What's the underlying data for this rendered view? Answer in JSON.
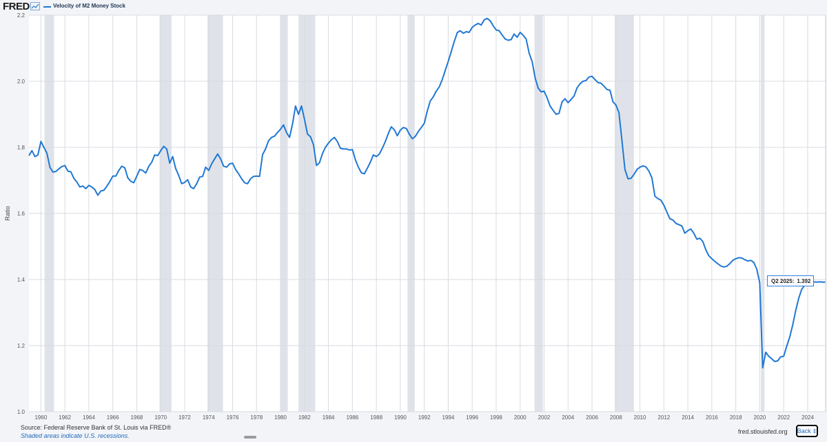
{
  "header": {
    "logo_text": "FRED",
    "logo_icon": "line-chart-icon",
    "series_title": "Velocity of M2 Money Stock"
  },
  "colors": {
    "series": "#1f77d4",
    "recession": "#dfe3e9",
    "grid": "#d7dbe1",
    "plot_bg": "#ffffff"
  },
  "chart_data": {
    "type": "line",
    "title": "Velocity of M2 Money Stock",
    "ylabel": "Ratio",
    "xlabel": "",
    "xlim": [
      1959.0,
      2025.5
    ],
    "ylim": [
      1.0,
      2.2
    ],
    "grid": true,
    "x_ticks": [
      "1960",
      "1962",
      "1964",
      "1966",
      "1968",
      "1970",
      "1972",
      "1974",
      "1976",
      "1978",
      "1980",
      "1982",
      "1984",
      "1986",
      "1988",
      "1990",
      "1992",
      "1994",
      "1996",
      "1998",
      "2000",
      "2002",
      "2004",
      "2006",
      "2008",
      "2010",
      "2012",
      "2014",
      "2016",
      "2018",
      "2020",
      "2022",
      "2024"
    ],
    "y_ticks": [
      "1.0",
      "1.2",
      "1.4",
      "1.6",
      "1.8",
      "2.0",
      "2.2"
    ],
    "recessions": [
      [
        1960.3,
        1961.1
      ],
      [
        1969.9,
        1970.9
      ],
      [
        1973.9,
        1975.2
      ],
      [
        1980.0,
        1980.6
      ],
      [
        1981.5,
        1982.9
      ],
      [
        1990.6,
        1991.2
      ],
      [
        2001.2,
        2001.9
      ],
      [
        2007.9,
        2009.5
      ],
      [
        2020.1,
        2020.4
      ]
    ],
    "series": [
      {
        "name": "Velocity of M2 Money Stock",
        "points": [
          [
            1959.0,
            1.775
          ],
          [
            1959.25,
            1.79
          ],
          [
            1959.5,
            1.772
          ],
          [
            1959.75,
            1.777
          ],
          [
            1960.0,
            1.818
          ],
          [
            1960.25,
            1.8
          ],
          [
            1960.5,
            1.782
          ],
          [
            1960.75,
            1.74
          ],
          [
            1961.0,
            1.725
          ],
          [
            1961.25,
            1.727
          ],
          [
            1961.5,
            1.735
          ],
          [
            1961.75,
            1.742
          ],
          [
            1962.0,
            1.745
          ],
          [
            1962.25,
            1.728
          ],
          [
            1962.5,
            1.726
          ],
          [
            1962.75,
            1.706
          ],
          [
            1963.0,
            1.695
          ],
          [
            1963.25,
            1.68
          ],
          [
            1963.5,
            1.683
          ],
          [
            1963.75,
            1.675
          ],
          [
            1964.0,
            1.685
          ],
          [
            1964.25,
            1.68
          ],
          [
            1964.5,
            1.672
          ],
          [
            1964.75,
            1.655
          ],
          [
            1965.0,
            1.668
          ],
          [
            1965.25,
            1.67
          ],
          [
            1965.5,
            1.682
          ],
          [
            1965.75,
            1.696
          ],
          [
            1966.0,
            1.713
          ],
          [
            1966.25,
            1.713
          ],
          [
            1966.5,
            1.73
          ],
          [
            1966.75,
            1.743
          ],
          [
            1967.0,
            1.738
          ],
          [
            1967.25,
            1.708
          ],
          [
            1967.5,
            1.697
          ],
          [
            1967.75,
            1.693
          ],
          [
            1968.0,
            1.713
          ],
          [
            1968.25,
            1.733
          ],
          [
            1968.5,
            1.73
          ],
          [
            1968.75,
            1.722
          ],
          [
            1969.0,
            1.742
          ],
          [
            1969.25,
            1.755
          ],
          [
            1969.5,
            1.777
          ],
          [
            1969.75,
            1.775
          ],
          [
            1970.0,
            1.79
          ],
          [
            1970.25,
            1.803
          ],
          [
            1970.5,
            1.795
          ],
          [
            1970.75,
            1.752
          ],
          [
            1971.0,
            1.772
          ],
          [
            1971.25,
            1.736
          ],
          [
            1971.5,
            1.715
          ],
          [
            1971.75,
            1.69
          ],
          [
            1972.0,
            1.694
          ],
          [
            1972.25,
            1.702
          ],
          [
            1972.5,
            1.68
          ],
          [
            1972.75,
            1.675
          ],
          [
            1973.0,
            1.69
          ],
          [
            1973.25,
            1.71
          ],
          [
            1973.5,
            1.712
          ],
          [
            1973.75,
            1.74
          ],
          [
            1974.0,
            1.73
          ],
          [
            1974.25,
            1.75
          ],
          [
            1974.5,
            1.765
          ],
          [
            1974.75,
            1.78
          ],
          [
            1975.0,
            1.765
          ],
          [
            1975.25,
            1.743
          ],
          [
            1975.5,
            1.74
          ],
          [
            1975.75,
            1.75
          ],
          [
            1976.0,
            1.752
          ],
          [
            1976.25,
            1.733
          ],
          [
            1976.5,
            1.72
          ],
          [
            1976.75,
            1.705
          ],
          [
            1977.0,
            1.693
          ],
          [
            1977.25,
            1.69
          ],
          [
            1977.5,
            1.705
          ],
          [
            1977.75,
            1.712
          ],
          [
            1978.0,
            1.713
          ],
          [
            1978.25,
            1.712
          ],
          [
            1978.5,
            1.778
          ],
          [
            1978.75,
            1.795
          ],
          [
            1979.0,
            1.82
          ],
          [
            1979.25,
            1.83
          ],
          [
            1979.5,
            1.834
          ],
          [
            1979.75,
            1.845
          ],
          [
            1980.0,
            1.855
          ],
          [
            1980.25,
            1.868
          ],
          [
            1980.5,
            1.845
          ],
          [
            1980.75,
            1.83
          ],
          [
            1981.0,
            1.87
          ],
          [
            1981.25,
            1.925
          ],
          [
            1981.5,
            1.9
          ],
          [
            1981.75,
            1.925
          ],
          [
            1982.0,
            1.885
          ],
          [
            1982.25,
            1.84
          ],
          [
            1982.5,
            1.832
          ],
          [
            1982.75,
            1.808
          ],
          [
            1983.0,
            1.745
          ],
          [
            1983.25,
            1.753
          ],
          [
            1983.5,
            1.781
          ],
          [
            1983.75,
            1.8
          ],
          [
            1984.0,
            1.813
          ],
          [
            1984.25,
            1.823
          ],
          [
            1984.5,
            1.83
          ],
          [
            1984.75,
            1.817
          ],
          [
            1985.0,
            1.797
          ],
          [
            1985.25,
            1.795
          ],
          [
            1985.5,
            1.795
          ],
          [
            1985.75,
            1.792
          ],
          [
            1986.0,
            1.793
          ],
          [
            1986.25,
            1.762
          ],
          [
            1986.5,
            1.74
          ],
          [
            1986.75,
            1.723
          ],
          [
            1987.0,
            1.72
          ],
          [
            1987.25,
            1.737
          ],
          [
            1987.5,
            1.755
          ],
          [
            1987.75,
            1.777
          ],
          [
            1988.0,
            1.772
          ],
          [
            1988.25,
            1.78
          ],
          [
            1988.5,
            1.797
          ],
          [
            1988.75,
            1.818
          ],
          [
            1989.0,
            1.842
          ],
          [
            1989.25,
            1.862
          ],
          [
            1989.5,
            1.853
          ],
          [
            1989.75,
            1.835
          ],
          [
            1990.0,
            1.852
          ],
          [
            1990.25,
            1.86
          ],
          [
            1990.5,
            1.857
          ],
          [
            1990.75,
            1.84
          ],
          [
            1991.0,
            1.826
          ],
          [
            1991.25,
            1.833
          ],
          [
            1991.5,
            1.848
          ],
          [
            1991.75,
            1.86
          ],
          [
            1992.0,
            1.873
          ],
          [
            1992.25,
            1.91
          ],
          [
            1992.5,
            1.94
          ],
          [
            1992.75,
            1.953
          ],
          [
            1993.0,
            1.97
          ],
          [
            1993.25,
            1.983
          ],
          [
            1993.5,
            2.005
          ],
          [
            1993.75,
            2.033
          ],
          [
            1994.0,
            2.06
          ],
          [
            1994.25,
            2.09
          ],
          [
            1994.5,
            2.12
          ],
          [
            1994.75,
            2.147
          ],
          [
            1995.0,
            2.153
          ],
          [
            1995.25,
            2.145
          ],
          [
            1995.5,
            2.15
          ],
          [
            1995.75,
            2.148
          ],
          [
            1996.0,
            2.163
          ],
          [
            1996.25,
            2.17
          ],
          [
            1996.5,
            2.175
          ],
          [
            1996.75,
            2.17
          ],
          [
            1997.0,
            2.186
          ],
          [
            1997.25,
            2.19
          ],
          [
            1997.5,
            2.183
          ],
          [
            1997.75,
            2.168
          ],
          [
            1998.0,
            2.155
          ],
          [
            1998.25,
            2.153
          ],
          [
            1998.5,
            2.14
          ],
          [
            1998.75,
            2.128
          ],
          [
            1999.0,
            2.124
          ],
          [
            1999.25,
            2.126
          ],
          [
            1999.5,
            2.143
          ],
          [
            1999.75,
            2.133
          ],
          [
            2000.0,
            2.148
          ],
          [
            2000.25,
            2.139
          ],
          [
            2000.5,
            2.128
          ],
          [
            2000.75,
            2.085
          ],
          [
            2001.0,
            2.06
          ],
          [
            2001.25,
            2.01
          ],
          [
            2001.5,
            1.98
          ],
          [
            2001.75,
            1.968
          ],
          [
            2002.0,
            1.97
          ],
          [
            2002.25,
            1.95
          ],
          [
            2002.5,
            1.925
          ],
          [
            2002.75,
            1.912
          ],
          [
            2003.0,
            1.9
          ],
          [
            2003.25,
            1.903
          ],
          [
            2003.5,
            1.938
          ],
          [
            2003.75,
            1.947
          ],
          [
            2004.0,
            1.935
          ],
          [
            2004.25,
            1.945
          ],
          [
            2004.5,
            1.955
          ],
          [
            2004.75,
            1.98
          ],
          [
            2005.0,
            1.992
          ],
          [
            2005.25,
            2.0
          ],
          [
            2005.5,
            2.002
          ],
          [
            2005.75,
            2.013
          ],
          [
            2006.0,
            2.015
          ],
          [
            2006.25,
            2.005
          ],
          [
            2006.5,
            1.996
          ],
          [
            2006.75,
            1.994
          ],
          [
            2007.0,
            1.985
          ],
          [
            2007.25,
            1.975
          ],
          [
            2007.5,
            1.973
          ],
          [
            2007.75,
            1.938
          ],
          [
            2008.0,
            1.928
          ],
          [
            2008.25,
            1.905
          ],
          [
            2008.5,
            1.82
          ],
          [
            2008.75,
            1.733
          ],
          [
            2009.0,
            1.705
          ],
          [
            2009.25,
            1.706
          ],
          [
            2009.5,
            1.718
          ],
          [
            2009.75,
            1.733
          ],
          [
            2010.0,
            1.74
          ],
          [
            2010.25,
            1.744
          ],
          [
            2010.5,
            1.741
          ],
          [
            2010.75,
            1.728
          ],
          [
            2011.0,
            1.708
          ],
          [
            2011.25,
            1.652
          ],
          [
            2011.5,
            1.645
          ],
          [
            2011.75,
            1.64
          ],
          [
            2012.0,
            1.625
          ],
          [
            2012.25,
            1.604
          ],
          [
            2012.5,
            1.584
          ],
          [
            2012.75,
            1.58
          ],
          [
            2013.0,
            1.57
          ],
          [
            2013.25,
            1.566
          ],
          [
            2013.5,
            1.562
          ],
          [
            2013.75,
            1.54
          ],
          [
            2014.0,
            1.548
          ],
          [
            2014.25,
            1.553
          ],
          [
            2014.5,
            1.54
          ],
          [
            2014.75,
            1.522
          ],
          [
            2015.0,
            1.525
          ],
          [
            2015.25,
            1.515
          ],
          [
            2015.5,
            1.49
          ],
          [
            2015.75,
            1.472
          ],
          [
            2016.0,
            1.463
          ],
          [
            2016.25,
            1.455
          ],
          [
            2016.5,
            1.448
          ],
          [
            2016.75,
            1.441
          ],
          [
            2017.0,
            1.438
          ],
          [
            2017.25,
            1.44
          ],
          [
            2017.5,
            1.448
          ],
          [
            2017.75,
            1.458
          ],
          [
            2018.0,
            1.463
          ],
          [
            2018.25,
            1.466
          ],
          [
            2018.5,
            1.465
          ],
          [
            2018.75,
            1.46
          ],
          [
            2019.0,
            1.456
          ],
          [
            2019.25,
            1.458
          ],
          [
            2019.5,
            1.452
          ],
          [
            2019.75,
            1.432
          ],
          [
            2020.0,
            1.39
          ],
          [
            2020.25,
            1.133
          ],
          [
            2020.5,
            1.18
          ],
          [
            2020.75,
            1.168
          ],
          [
            2021.0,
            1.16
          ],
          [
            2021.25,
            1.152
          ],
          [
            2021.5,
            1.154
          ],
          [
            2021.75,
            1.166
          ],
          [
            2022.0,
            1.168
          ],
          [
            2022.25,
            1.198
          ],
          [
            2022.5,
            1.225
          ],
          [
            2022.75,
            1.262
          ],
          [
            2023.0,
            1.305
          ],
          [
            2023.25,
            1.343
          ],
          [
            2023.5,
            1.37
          ],
          [
            2023.75,
            1.383
          ],
          [
            2024.0,
            1.388
          ],
          [
            2024.25,
            1.392
          ],
          [
            2024.5,
            1.393
          ],
          [
            2024.75,
            1.392
          ],
          [
            2025.0,
            1.393
          ],
          [
            2025.25,
            1.392
          ],
          [
            2025.5,
            1.392
          ]
        ]
      }
    ]
  },
  "tooltip": {
    "label": "Q2 2025:",
    "value": "1.392"
  },
  "footer": {
    "source": "Source: Federal Reserve Bank of St. Louis via FRED®",
    "note": "Shaded areas indicate U.S. recessions.",
    "site": "fred.stlouisfed.org",
    "back_label": "Back",
    "back_icon": "expand-arrows-icon"
  }
}
